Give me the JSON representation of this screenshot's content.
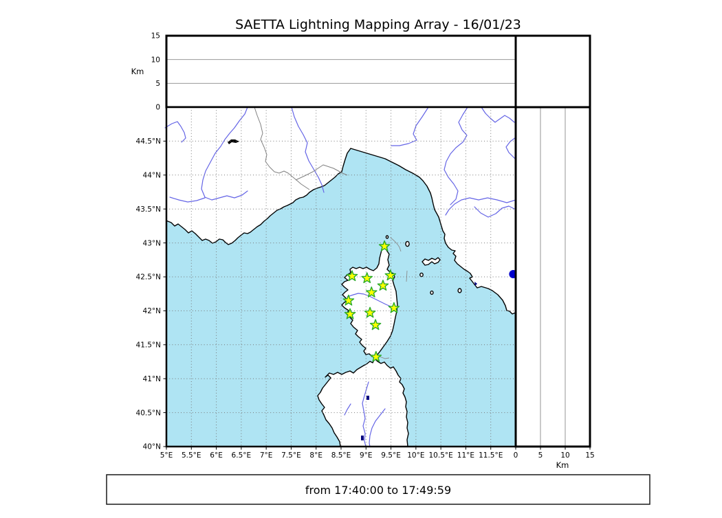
{
  "title": "SAETTA Lightning Mapping Array - 16/01/23",
  "time_range": "from 17:40:00 to 17:49:59",
  "altitude_axis": {
    "unit": "Km",
    "ticks": [
      0,
      5,
      10,
      15
    ],
    "gridlines": [
      5,
      10
    ],
    "range": [
      0,
      15
    ]
  },
  "map": {
    "lon_range": [
      5,
      12
    ],
    "lat_range": [
      40,
      45
    ],
    "lon_ticks": [
      {
        "value": 5,
        "label": "5°E"
      },
      {
        "value": 5.5,
        "label": "5.5°E"
      },
      {
        "value": 6,
        "label": "6°E"
      },
      {
        "value": 6.5,
        "label": "6.5°E"
      },
      {
        "value": 7,
        "label": "7°E"
      },
      {
        "value": 7.5,
        "label": "7.5°E"
      },
      {
        "value": 8,
        "label": "8°E"
      },
      {
        "value": 8.5,
        "label": "8.5°E"
      },
      {
        "value": 9,
        "label": "9°E"
      },
      {
        "value": 9.5,
        "label": "9.5°E"
      },
      {
        "value": 10,
        "label": "10°E"
      },
      {
        "value": 10.5,
        "label": "10.5°E"
      },
      {
        "value": 11,
        "label": "11°E"
      },
      {
        "value": 11.5,
        "label": "11.5°E"
      }
    ],
    "lat_ticks": [
      {
        "value": 40,
        "label": "40°N"
      },
      {
        "value": 40.5,
        "label": "40.5°N"
      },
      {
        "value": 41,
        "label": "41°N"
      },
      {
        "value": 41.5,
        "label": "41.5°N"
      },
      {
        "value": 42,
        "label": "42°N"
      },
      {
        "value": 42.5,
        "label": "42.5°N"
      },
      {
        "value": 43,
        "label": "43°N"
      },
      {
        "value": 43.5,
        "label": "43.5°N"
      },
      {
        "value": 44,
        "label": "44°N"
      },
      {
        "value": 44.5,
        "label": "44.5°N"
      }
    ]
  },
  "stations": [
    {
      "lon": 9.37,
      "lat": 42.95
    },
    {
      "lon": 8.72,
      "lat": 42.51
    },
    {
      "lon": 9.02,
      "lat": 42.48
    },
    {
      "lon": 9.49,
      "lat": 42.52
    },
    {
      "lon": 9.34,
      "lat": 42.37
    },
    {
      "lon": 9.11,
      "lat": 42.27
    },
    {
      "lon": 8.65,
      "lat": 42.15
    },
    {
      "lon": 9.56,
      "lat": 42.04
    },
    {
      "lon": 8.68,
      "lat": 41.95
    },
    {
      "lon": 9.08,
      "lat": 41.97
    },
    {
      "lon": 9.19,
      "lat": 41.79
    },
    {
      "lon": 9.2,
      "lat": 41.32
    }
  ],
  "detections": [
    {
      "lon": 11.95,
      "lat": 42.54,
      "alt_km": 0
    }
  ],
  "colors": {
    "sea": "#AFE4F3",
    "land": "#FFFFFF",
    "coast": "#000000",
    "river": "#6464E6",
    "country_border": "#808080",
    "grid": "#777777",
    "panel_grid": "#888888",
    "station_fill": "#FFFF00",
    "station_edge": "#2AAA2A",
    "detection": "#0000CC"
  },
  "chart_data": {
    "type": "map",
    "title": "SAETTA Lightning Mapping Array - 16/01/23",
    "extent": {
      "lon": [
        5,
        12
      ],
      "lat": [
        40,
        45
      ]
    },
    "altitude_panels": {
      "unit": "Km",
      "range": [
        0,
        15
      ],
      "ticks": [
        0,
        5,
        10,
        15
      ]
    },
    "station_count": 12,
    "detection_points": [
      {
        "lon": 11.95,
        "lat": 42.54,
        "alt_km": 0
      }
    ],
    "time_window": {
      "from": "17:40:00",
      "to": "17:49:59"
    }
  }
}
